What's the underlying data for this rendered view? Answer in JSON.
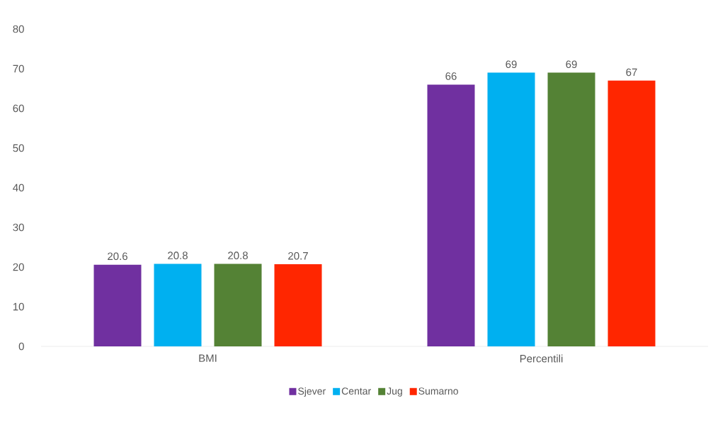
{
  "chart_data": {
    "type": "bar",
    "categories": [
      "BMI",
      "Percentili"
    ],
    "series": [
      {
        "name": "Sjever",
        "color": "#7030a0",
        "values": [
          20.6,
          66
        ]
      },
      {
        "name": "Centar",
        "color": "#00b0f0",
        "values": [
          20.8,
          69
        ]
      },
      {
        "name": "Jug",
        "color": "#548235",
        "values": [
          20.8,
          69
        ]
      },
      {
        "name": "Sumarno",
        "color": "#ff2600",
        "values": [
          20.7,
          67
        ]
      }
    ],
    "ylim": [
      0,
      80
    ],
    "yticks": [
      0,
      10,
      20,
      30,
      40,
      50,
      60,
      70,
      80
    ],
    "data_labels": true,
    "legend": "bottom"
  }
}
